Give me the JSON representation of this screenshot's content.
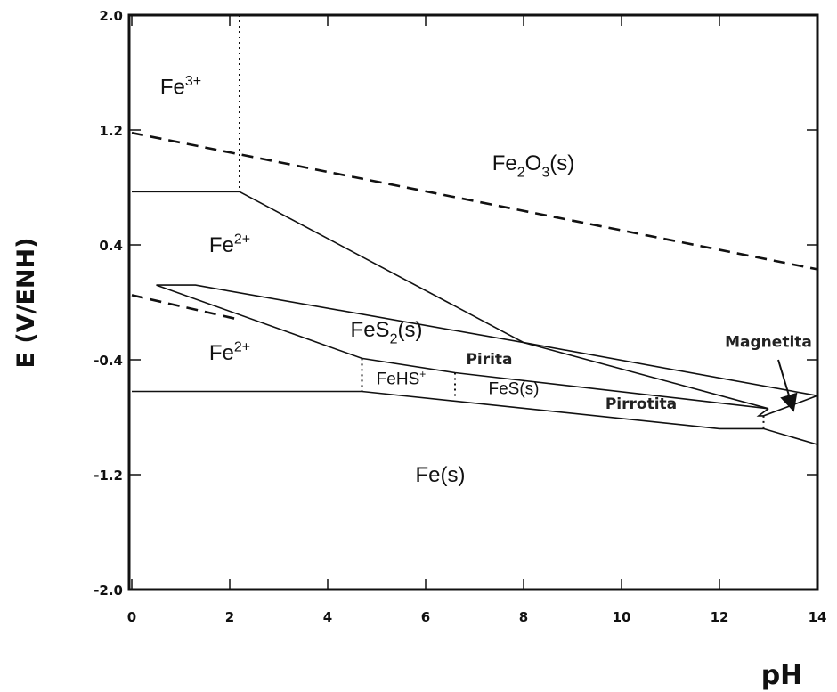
{
  "chart_data": {
    "type": "line",
    "title": "",
    "xlabel": "pH",
    "ylabel": "E (V/ENH)",
    "xlim": [
      0,
      14
    ],
    "ylim": [
      -2.0,
      2.0
    ],
    "x_ticks": [
      "0",
      "2",
      "4",
      "6",
      "8",
      "10",
      "12",
      "14"
    ],
    "y_ticks": [
      "2.0",
      "1.2",
      "0.4",
      "-0.4",
      "-1.2",
      "-2.0"
    ],
    "grid": false,
    "boundaries": [
      {
        "style": "dashed",
        "points": [
          [
            0,
            1.18
          ],
          [
            14,
            0.23
          ]
        ]
      },
      {
        "style": "dashed",
        "points": [
          [
            0,
            0.05
          ],
          [
            2.2,
            -0.12
          ]
        ]
      },
      {
        "style": "dotted",
        "points": [
          [
            2.2,
            2.0
          ],
          [
            2.2,
            0.77
          ]
        ]
      },
      {
        "style": "dotted",
        "points": [
          [
            4.7,
            -0.39
          ],
          [
            4.7,
            -0.62
          ]
        ]
      },
      {
        "style": "dotted",
        "points": [
          [
            6.6,
            -0.49
          ],
          [
            6.6,
            -0.67
          ]
        ]
      },
      {
        "style": "dotted",
        "points": [
          [
            12.9,
            -0.79
          ],
          [
            12.9,
            -0.9
          ]
        ]
      },
      {
        "style": "solid",
        "points": [
          [
            0,
            0.77
          ],
          [
            2.2,
            0.77
          ]
        ]
      },
      {
        "style": "solid",
        "points": [
          [
            2.2,
            0.77
          ],
          [
            8.0,
            -0.28
          ]
        ]
      },
      {
        "style": "solid",
        "points": [
          [
            0.5,
            0.12
          ],
          [
            1.3,
            0.12
          ],
          [
            8.0,
            -0.28
          ],
          [
            14.0,
            -0.65
          ]
        ]
      },
      {
        "style": "solid",
        "points": [
          [
            0.5,
            0.12
          ],
          [
            4.7,
            -0.39
          ],
          [
            6.6,
            -0.49
          ],
          [
            13.0,
            -0.74
          ]
        ]
      },
      {
        "style": "solid",
        "points": [
          [
            8.0,
            -0.28
          ],
          [
            13.0,
            -0.74
          ]
        ]
      },
      {
        "style": "solid",
        "points": [
          [
            0,
            -0.62
          ],
          [
            4.7,
            -0.62
          ],
          [
            12.0,
            -0.88
          ],
          [
            12.9,
            -0.88
          ],
          [
            14.0,
            -0.99
          ]
        ]
      },
      {
        "style": "solid",
        "points": [
          [
            13.0,
            -0.74
          ],
          [
            12.8,
            -0.79
          ],
          [
            12.9,
            -0.79
          ],
          [
            14.0,
            -0.65
          ]
        ]
      }
    ],
    "regions": [
      {
        "label": "Fe",
        "sup": "3+",
        "x": 1.0,
        "y": 1.45,
        "kind": "ion"
      },
      {
        "label": "Fe",
        "sub": "2",
        "mid": "O",
        "sub2": "3",
        "tail": "(s)",
        "x": 8.2,
        "y": 0.92,
        "kind": "ion"
      },
      {
        "label": "Fe",
        "sup": "2+",
        "x": 2.0,
        "y": 0.35,
        "kind": "ion"
      },
      {
        "label": "Fe",
        "sup": "2+",
        "x": 2.0,
        "y": -0.4,
        "kind": "ion"
      },
      {
        "label": "FeS",
        "sub": "2",
        "tail": "(s)",
        "x": 5.2,
        "y": -0.24,
        "kind": "ion"
      },
      {
        "label": "FeHS",
        "sup": "+",
        "x": 5.5,
        "y": -0.57,
        "kind": "ion-small"
      },
      {
        "label": "FeS(s)",
        "x": 7.8,
        "y": -0.64,
        "kind": "ion-small"
      },
      {
        "label": "Fe(s)",
        "x": 6.3,
        "y": -1.25,
        "kind": "ion"
      },
      {
        "label": "Pirita",
        "x": 7.3,
        "y": -0.43,
        "kind": "mineral"
      },
      {
        "label": "Pirrotita",
        "x": 10.4,
        "y": -0.74,
        "kind": "mineral"
      },
      {
        "label": "Magnetita",
        "x": 13.0,
        "y": -0.31,
        "kind": "mineral"
      }
    ],
    "arrow": {
      "from": [
        13.2,
        -0.4
      ],
      "to": [
        13.5,
        -0.74
      ]
    }
  }
}
